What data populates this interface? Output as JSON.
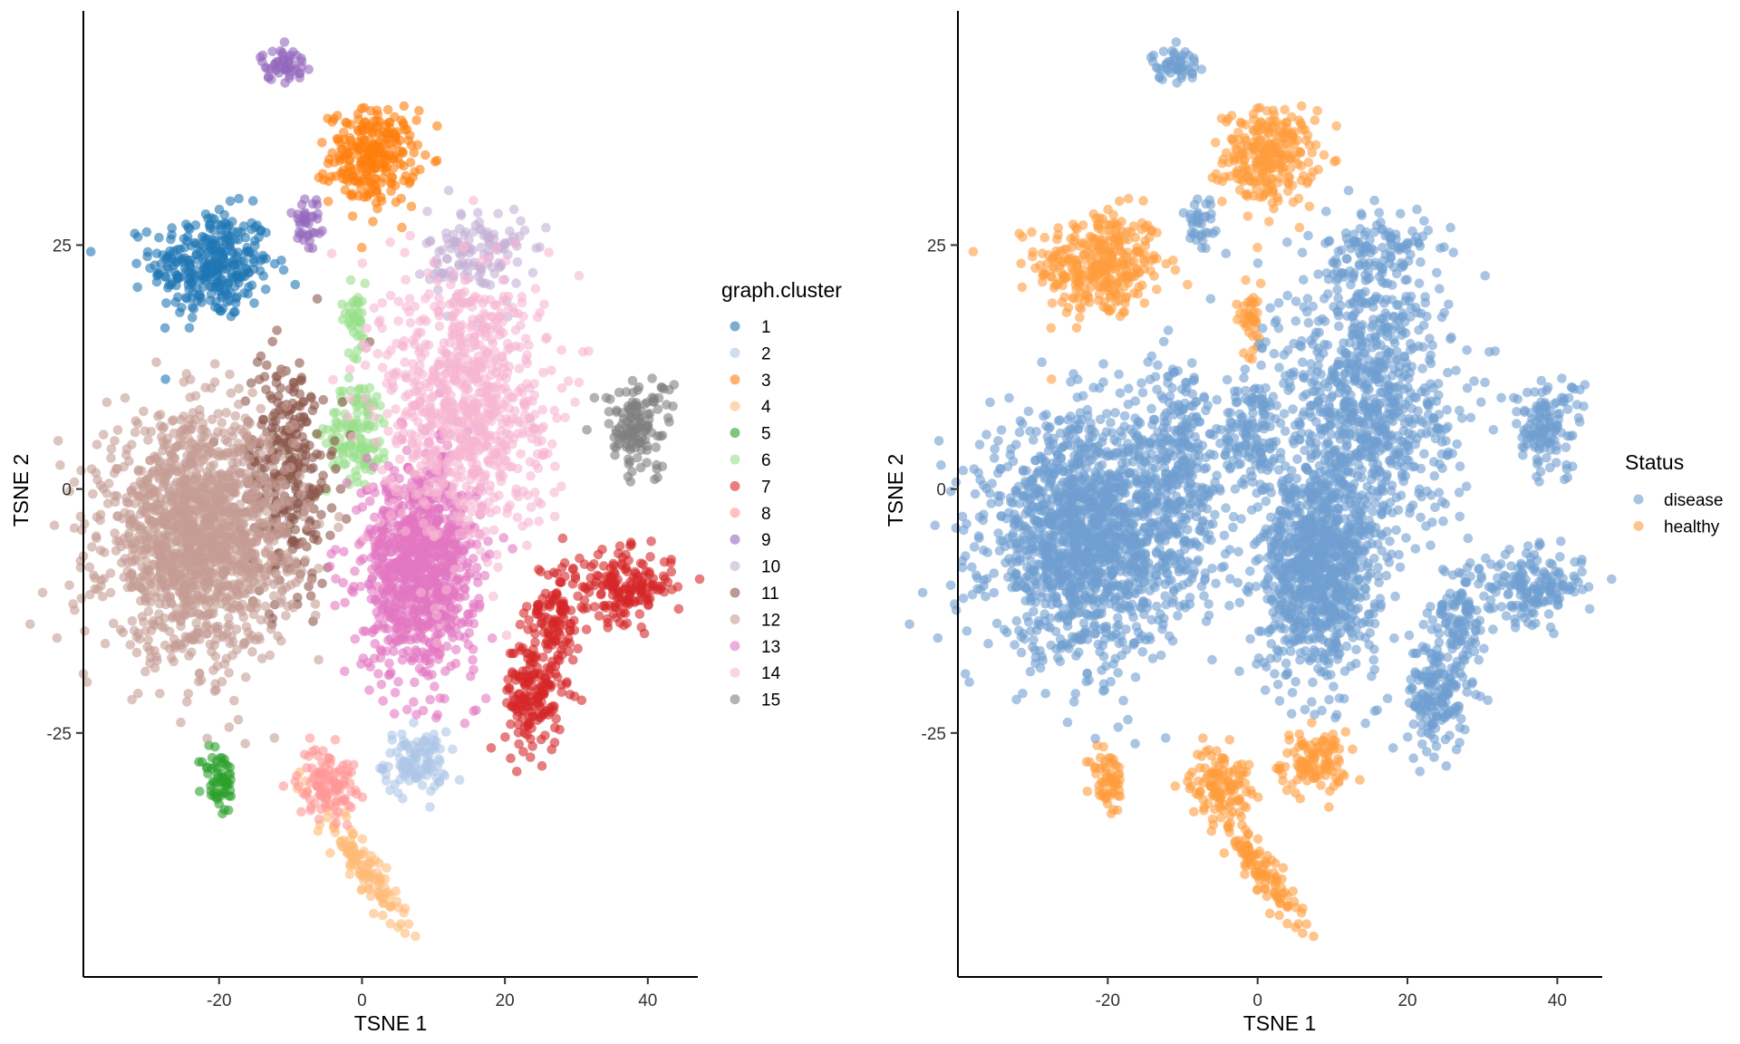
{
  "chart_data": [
    {
      "type": "scatter",
      "xlabel": "TSNE 1",
      "ylabel": "TSNE 2",
      "xlim": [
        -39,
        47
      ],
      "ylim": [
        -50,
        49
      ],
      "xticks": [
        -20,
        0,
        20,
        40
      ],
      "yticks": [
        -25,
        0,
        25
      ],
      "legend": {
        "title": "graph.cluster",
        "position": "right",
        "items": [
          "1",
          "2",
          "3",
          "4",
          "5",
          "6",
          "7",
          "8",
          "9",
          "10",
          "11",
          "12",
          "13",
          "14",
          "15"
        ]
      },
      "point_alpha": 0.6,
      "clusters": [
        {
          "name": "1",
          "color": "#1f77b4",
          "center": [
            -21,
            23
          ],
          "spread": [
            4.2,
            2.8
          ],
          "n": 320
        },
        {
          "name": "2",
          "color": "#aec7e8",
          "center": [
            7.5,
            -28
          ],
          "spread": [
            2.2,
            1.6
          ],
          "n": 110
        },
        {
          "name": "3",
          "color": "#ff7f0e",
          "center": [
            1.5,
            34
          ],
          "spread": [
            3.0,
            2.4
          ],
          "n": 260
        },
        {
          "name": "4",
          "color": "#ffbb78",
          "center": [
            0,
            -38.5
          ],
          "spread": [
            3.0,
            3.6
          ],
          "n": 120,
          "elongate": [
            -0.9,
            1.0
          ]
        },
        {
          "name": "5",
          "color": "#2ca02c",
          "center": [
            -20,
            -30
          ],
          "spread": [
            1.2,
            1.8
          ],
          "n": 60
        },
        {
          "name": "6",
          "color": "#98df8a",
          "center": [
            -0.5,
            6
          ],
          "spread": [
            2.2,
            2.6
          ],
          "n": 130
        },
        {
          "name": "6",
          "color": "#98df8a",
          "center": [
            -1,
            17.5
          ],
          "spread": [
            1.0,
            1.8
          ],
          "n": 40
        },
        {
          "name": "7",
          "color": "#d62728",
          "center": [
            37,
            -10
          ],
          "spread": [
            3.2,
            1.8
          ],
          "n": 170
        },
        {
          "name": "7",
          "color": "#d62728",
          "center": [
            27,
            -13
          ],
          "spread": [
            1.8,
            3.0
          ],
          "n": 110
        },
        {
          "name": "7",
          "color": "#d62728",
          "center": [
            24,
            -21
          ],
          "spread": [
            2.0,
            3.0
          ],
          "n": 170
        },
        {
          "name": "8",
          "color": "#ff9896",
          "center": [
            -5,
            -30
          ],
          "spread": [
            2.0,
            1.8
          ],
          "n": 110
        },
        {
          "name": "9",
          "color": "#9467bd",
          "center": [
            -11,
            43.5
          ],
          "spread": [
            1.6,
            0.8
          ],
          "n": 50
        },
        {
          "name": "9",
          "color": "#9467bd",
          "center": [
            -7.5,
            27
          ],
          "spread": [
            1.2,
            2.0
          ],
          "n": 35
        },
        {
          "name": "10",
          "color": "#c5b0d5",
          "center": [
            16,
            24
          ],
          "spread": [
            3.4,
            2.4
          ],
          "n": 130
        },
        {
          "name": "11",
          "color": "#8c564b",
          "center": [
            -10.5,
            2
          ],
          "spread": [
            3.2,
            6.0
          ],
          "n": 330
        },
        {
          "name": "12",
          "color": "#c49c94",
          "center": [
            -23,
            -5
          ],
          "spread": [
            6.5,
            6.0
          ],
          "n": 1500
        },
        {
          "name": "13",
          "color": "#e377c2",
          "center": [
            8,
            -8
          ],
          "spread": [
            4.0,
            5.4
          ],
          "n": 950
        },
        {
          "name": "14",
          "color": "#f7b6d2",
          "center": [
            14.5,
            9
          ],
          "spread": [
            5.8,
            7.0
          ],
          "n": 800
        },
        {
          "name": "15",
          "color": "#7f7f7f",
          "center": [
            38.5,
            6.5
          ],
          "spread": [
            2.4,
            2.4
          ],
          "n": 130
        }
      ]
    },
    {
      "type": "scatter",
      "xlabel": "TSNE 1",
      "ylabel": "TSNE 2",
      "xlim": [
        -40,
        46
      ],
      "ylim": [
        -50,
        49
      ],
      "xticks": [
        -20,
        0,
        20,
        40
      ],
      "yticks": [
        -25,
        0,
        25
      ],
      "legend": {
        "title": "Status",
        "position": "right",
        "items": [
          "disease",
          "healthy"
        ]
      },
      "point_alpha": 0.6,
      "series": [
        {
          "name": "disease",
          "color": "#6f9ed1"
        },
        {
          "name": "healthy",
          "color": "#ff9d3d"
        }
      ]
    }
  ]
}
